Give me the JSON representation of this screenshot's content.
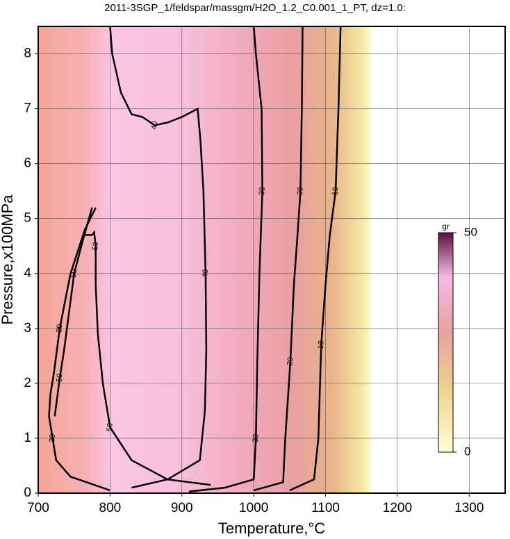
{
  "chart_data": {
    "type": "contour",
    "title": "2011-3SGP_1/feldspar/massgm/H2O_1.2_C0.001_1_PT, dz=1.0:",
    "x_label": "Temperature,°C",
    "y_label": "Pressure,x100MPa",
    "xlim": [
      700,
      1350
    ],
    "ylim": [
      0,
      8.5
    ],
    "xticks": [
      700,
      800,
      900,
      1000,
      1100,
      1200,
      1300
    ],
    "yticks": [
      0,
      1,
      2,
      3,
      4,
      5,
      6,
      7,
      8
    ],
    "grid": true,
    "contours": [
      {
        "level": 10,
        "x": [
          1050,
          1084,
          1090,
          1094,
          1100,
          1106,
          1114,
          1118,
          1121
        ],
        "y": [
          0.05,
          0.25,
          1,
          2.7,
          3.8,
          4.7,
          5.5,
          7,
          8.5
        ]
      },
      {
        "level": 20,
        "x": [
          1000,
          1041,
          1044,
          1051,
          1056,
          1061,
          1065,
          1067,
          1068
        ],
        "y": [
          0.05,
          0.2,
          1,
          2.4,
          3.8,
          4.7,
          5.5,
          7,
          8.5
        ]
      },
      {
        "level": 30,
        "x": [
          910,
          960,
          1000,
          1003,
          1005,
          1008,
          1012,
          1011,
          1003,
          1000
        ],
        "y": [
          0.03,
          0.1,
          0.25,
          1,
          2.4,
          4,
          5.5,
          7,
          8,
          8.5
        ]
      },
      {
        "level": 40,
        "x": [
          830,
          880,
          925,
          932,
          934,
          933,
          930,
          926,
          922,
          900,
          880,
          862,
          845,
          830,
          815,
          803,
          800
        ],
        "y": [
          0.1,
          0.25,
          0.6,
          1.5,
          2.6,
          4,
          5.5,
          6.4,
          7,
          6.85,
          6.75,
          6.7,
          6.85,
          6.9,
          7.3,
          8,
          8.5
        ]
      },
      {
        "level": 50,
        "x": [
          940,
          880,
          830,
          800,
          790,
          783,
          780,
          780,
          778,
          775,
          765
        ],
        "y": [
          0.15,
          0.25,
          0.6,
          1.2,
          2,
          2.9,
          3.8,
          4.5,
          4.75,
          4.7,
          4.7
        ]
      },
      {
        "level": 50,
        "x": [
          775,
          762,
          750,
          742,
          736,
          730,
          727,
          723
        ],
        "y": [
          5.2,
          4.6,
          4,
          3.2,
          2.6,
          2.1,
          1.8,
          1.4
        ]
      },
      {
        "level": 30,
        "x": [
          800,
          745,
          725,
          720,
          715,
          717,
          722,
          730,
          745,
          765,
          780
        ],
        "y": [
          0.05,
          0.3,
          0.6,
          1.0,
          1.4,
          1.8,
          2.2,
          3.0,
          4.0,
          4.8,
          5.2
        ]
      }
    ],
    "colorbar": {
      "label": "gr",
      "lim": [
        0,
        50
      ],
      "ticks": [
        0,
        50
      ]
    }
  }
}
